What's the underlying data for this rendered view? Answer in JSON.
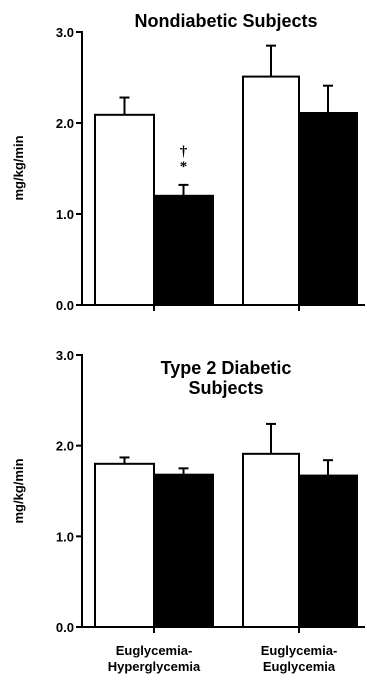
{
  "colors": {
    "control": "#ffffff",
    "treatment": "#000000",
    "stroke": "#000000"
  },
  "chart_data": [
    {
      "type": "bar",
      "title": "Nondiabetic Subjects",
      "ylabel": "mg/kg/min",
      "xlabel": "",
      "ylim": [
        0,
        3
      ],
      "yticks": [
        "0.0",
        "1.0",
        "2.0",
        "3.0"
      ],
      "categories": [
        "Euglycemia-Hyperglycemia",
        "Euglycemia-Euglycemia"
      ],
      "series": [
        {
          "fill": "white",
          "values": [
            2.09,
            2.51
          ],
          "errors": [
            0.19,
            0.34
          ]
        },
        {
          "fill": "black",
          "values": [
            1.2,
            2.11
          ],
          "errors": [
            0.12,
            0.3
          ]
        }
      ],
      "annotations": [
        {
          "text": "†",
          "category": 0,
          "series": 1
        },
        {
          "text": "*",
          "category": 0,
          "series": 1
        }
      ],
      "legend": "none",
      "grid": false
    },
    {
      "type": "bar",
      "title": "Type 2 Diabetic Subjects",
      "title_lines": [
        "Type 2 Diabetic",
        "Subjects"
      ],
      "ylabel": "mg/kg/min",
      "xlabel": "",
      "ylim": [
        0,
        3
      ],
      "yticks": [
        "0.0",
        "1.0",
        "2.0",
        "3.0"
      ],
      "categories": [
        "Euglycemia-Hyperglycemia",
        "Euglycemia-Euglycemia"
      ],
      "category_lines": [
        [
          "Euglycemia-",
          "Hyperglycemia"
        ],
        [
          "Euglycemia-",
          "Euglycemia"
        ]
      ],
      "series": [
        {
          "fill": "white",
          "values": [
            1.8,
            1.91
          ],
          "errors": [
            0.07,
            0.33
          ]
        },
        {
          "fill": "black",
          "values": [
            1.68,
            1.67
          ],
          "errors": [
            0.07,
            0.17
          ]
        }
      ],
      "legend": "none",
      "grid": false
    }
  ]
}
